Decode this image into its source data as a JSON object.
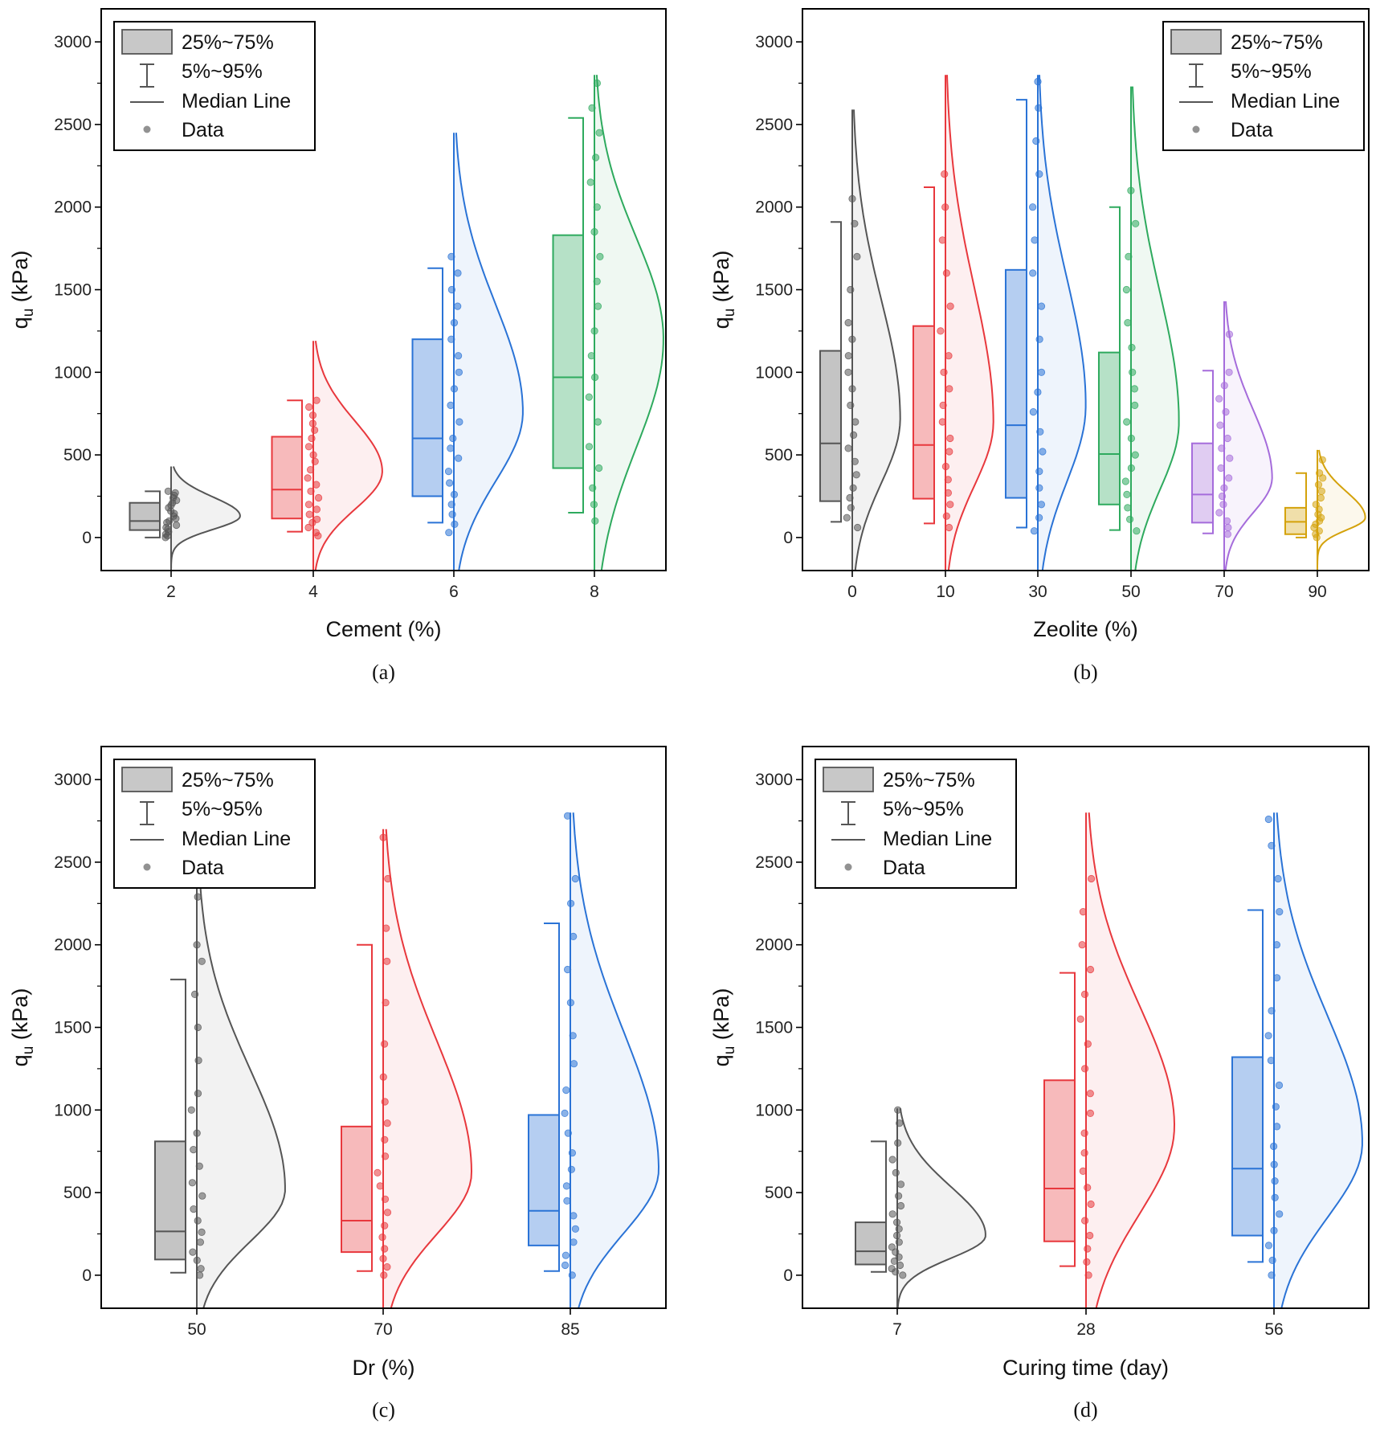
{
  "legend": {
    "box_label": "25%~75%",
    "whisker_label": "5%~95%",
    "median_label": "Median Line",
    "data_label": "Data"
  },
  "colors": {
    "gray": "#555555",
    "red": "#e8383d",
    "blue": "#2a73d6",
    "green": "#2eaa5e",
    "purple": "#a56cdb",
    "gold": "#d4a20b"
  },
  "chart_data": [
    {
      "panel": "a",
      "caption": "(a)",
      "type": "box-violin",
      "xlabel": "Cement (%)",
      "ylabel_main": "q",
      "ylabel_sub": "u",
      "ylabel_unit": " (kPa)",
      "ylim": [
        -200,
        3200
      ],
      "yticks": [
        0,
        500,
        1000,
        1500,
        2000,
        2500,
        3000
      ],
      "legend_position": "top-left",
      "groups": [
        {
          "category": "2",
          "color": "gray",
          "p5": 0,
          "q1": 45,
          "median": 100,
          "q3": 210,
          "p95": 280,
          "max": 430,
          "mode": 130,
          "points": [
            0,
            10,
            20,
            35,
            50,
            60,
            75,
            90,
            100,
            115,
            130,
            145,
            160,
            180,
            195,
            210,
            225,
            240,
            255,
            270,
            280
          ]
        },
        {
          "category": "4",
          "color": "red",
          "p5": 35,
          "q1": 115,
          "median": 290,
          "q3": 610,
          "p95": 830,
          "max": 1190,
          "mode": 400,
          "points": [
            10,
            30,
            60,
            90,
            110,
            140,
            170,
            200,
            240,
            280,
            320,
            360,
            410,
            460,
            500,
            550,
            600,
            650,
            690,
            740,
            790,
            830
          ]
        },
        {
          "category": "6",
          "color": "blue",
          "p5": 90,
          "q1": 250,
          "median": 600,
          "q3": 1200,
          "p95": 1630,
          "max": 2450,
          "mode": 760,
          "points": [
            30,
            80,
            140,
            200,
            260,
            330,
            400,
            480,
            540,
            600,
            700,
            800,
            900,
            1000,
            1100,
            1200,
            1300,
            1400,
            1500,
            1600,
            1700
          ]
        },
        {
          "category": "8",
          "color": "green",
          "p5": 150,
          "q1": 420,
          "median": 970,
          "q3": 1830,
          "p95": 2540,
          "max": 2800,
          "mode": 1200,
          "points": [
            100,
            200,
            300,
            420,
            550,
            700,
            850,
            970,
            1100,
            1250,
            1400,
            1550,
            1700,
            1850,
            2000,
            2150,
            2300,
            2450,
            2600,
            2750
          ]
        }
      ]
    },
    {
      "panel": "b",
      "caption": "(b)",
      "type": "box-violin",
      "xlabel": "Zeolite (%)",
      "ylabel_main": "q",
      "ylabel_sub": "u",
      "ylabel_unit": " (kPa)",
      "ylim": [
        -200,
        3200
      ],
      "yticks": [
        0,
        500,
        1000,
        1500,
        2000,
        2500,
        3000
      ],
      "legend_position": "top-right",
      "groups": [
        {
          "category": "0",
          "color": "gray",
          "p5": 95,
          "q1": 220,
          "median": 570,
          "q3": 1130,
          "p95": 1910,
          "max": 2590,
          "mode": 720,
          "points": [
            60,
            120,
            180,
            240,
            300,
            380,
            460,
            540,
            620,
            700,
            800,
            900,
            1000,
            1100,
            1200,
            1300,
            1500,
            1700,
            1900,
            2050
          ]
        },
        {
          "category": "10",
          "color": "red",
          "p5": 85,
          "q1": 235,
          "median": 560,
          "q3": 1280,
          "p95": 2120,
          "max": 2800,
          "mode": 700,
          "points": [
            60,
            130,
            200,
            270,
            350,
            430,
            520,
            600,
            700,
            800,
            900,
            1000,
            1100,
            1250,
            1400,
            1600,
            1800,
            2000,
            2200
          ]
        },
        {
          "category": "30",
          "color": "blue",
          "p5": 60,
          "q1": 240,
          "median": 680,
          "q3": 1620,
          "p95": 2650,
          "max": 2800,
          "mode": 800,
          "points": [
            40,
            120,
            200,
            300,
            400,
            520,
            640,
            760,
            880,
            1000,
            1200,
            1400,
            1600,
            1800,
            2000,
            2200,
            2400,
            2600,
            2760
          ]
        },
        {
          "category": "50",
          "color": "green",
          "p5": 45,
          "q1": 200,
          "median": 505,
          "q3": 1120,
          "p95": 2000,
          "max": 2730,
          "mode": 700,
          "points": [
            40,
            110,
            180,
            260,
            340,
            420,
            500,
            600,
            700,
            800,
            900,
            1000,
            1150,
            1300,
            1500,
            1700,
            1900,
            2100
          ]
        },
        {
          "category": "70",
          "color": "purple",
          "p5": 25,
          "q1": 90,
          "median": 260,
          "q3": 570,
          "p95": 1010,
          "max": 1430,
          "mode": 360,
          "points": [
            20,
            60,
            100,
            150,
            200,
            250,
            300,
            360,
            420,
            480,
            540,
            600,
            680,
            760,
            840,
            920,
            1000,
            1230
          ]
        },
        {
          "category": "90",
          "color": "gold",
          "p5": 0,
          "q1": 20,
          "median": 95,
          "q3": 180,
          "p95": 390,
          "max": 530,
          "mode": 120,
          "points": [
            0,
            20,
            40,
            60,
            80,
            100,
            120,
            140,
            170,
            200,
            240,
            280,
            320,
            360,
            390,
            470
          ]
        }
      ]
    },
    {
      "panel": "c",
      "caption": "(c)",
      "type": "box-violin",
      "xlabel": "Dr (%)",
      "ylabel_main": "q",
      "ylabel_sub": "u",
      "ylabel_unit": " (kPa)",
      "ylim": [
        -200,
        3200
      ],
      "yticks": [
        0,
        500,
        1000,
        1500,
        2000,
        2500,
        3000
      ],
      "legend_position": "top-left",
      "groups": [
        {
          "category": "50",
          "color": "gray",
          "p5": 15,
          "q1": 95,
          "median": 265,
          "q3": 810,
          "p95": 1790,
          "max": 2400,
          "mode": 520,
          "points": [
            0,
            40,
            90,
            140,
            200,
            260,
            330,
            400,
            480,
            560,
            660,
            760,
            860,
            1000,
            1100,
            1300,
            1500,
            1700,
            1900,
            2000,
            2290
          ]
        },
        {
          "category": "70",
          "color": "red",
          "p5": 25,
          "q1": 140,
          "median": 330,
          "q3": 900,
          "p95": 2000,
          "max": 2700,
          "mode": 620,
          "points": [
            0,
            50,
            100,
            160,
            230,
            300,
            380,
            460,
            540,
            620,
            720,
            820,
            920,
            1050,
            1200,
            1400,
            1650,
            1900,
            2100,
            2400,
            2650
          ]
        },
        {
          "category": "85",
          "color": "blue",
          "p5": 25,
          "q1": 180,
          "median": 390,
          "q3": 970,
          "p95": 2130,
          "max": 2800,
          "mode": 640,
          "points": [
            0,
            60,
            120,
            200,
            280,
            360,
            450,
            540,
            640,
            740,
            860,
            980,
            1120,
            1280,
            1450,
            1650,
            1850,
            2050,
            2250,
            2400,
            2780
          ]
        }
      ]
    },
    {
      "panel": "d",
      "caption": "(d)",
      "type": "box-violin",
      "xlabel": "Curing time (day)",
      "ylabel_main": "q",
      "ylabel_sub": "u",
      "ylabel_unit": " (kPa)",
      "ylim": [
        -200,
        3200
      ],
      "yticks": [
        0,
        500,
        1000,
        1500,
        2000,
        2500,
        3000
      ],
      "legend_position": "top-left",
      "groups": [
        {
          "category": "7",
          "color": "gray",
          "p5": 20,
          "q1": 65,
          "median": 145,
          "q3": 320,
          "p95": 810,
          "max": 1010,
          "mode": 240,
          "points": [
            0,
            20,
            40,
            60,
            85,
            110,
            140,
            170,
            200,
            240,
            280,
            320,
            370,
            420,
            480,
            550,
            620,
            700,
            800,
            920,
            1000
          ]
        },
        {
          "category": "28",
          "color": "red",
          "p5": 55,
          "q1": 205,
          "median": 525,
          "q3": 1180,
          "p95": 1830,
          "max": 2800,
          "mode": 900,
          "points": [
            0,
            80,
            160,
            240,
            330,
            430,
            530,
            630,
            740,
            860,
            980,
            1100,
            1250,
            1400,
            1550,
            1700,
            1850,
            2000,
            2200,
            2400
          ]
        },
        {
          "category": "56",
          "color": "blue",
          "p5": 80,
          "q1": 240,
          "median": 645,
          "q3": 1320,
          "p95": 2210,
          "max": 2800,
          "mode": 800,
          "points": [
            0,
            90,
            180,
            270,
            370,
            470,
            570,
            670,
            780,
            900,
            1020,
            1150,
            1300,
            1450,
            1600,
            1800,
            2000,
            2200,
            2400,
            2600,
            2760
          ]
        }
      ]
    }
  ]
}
